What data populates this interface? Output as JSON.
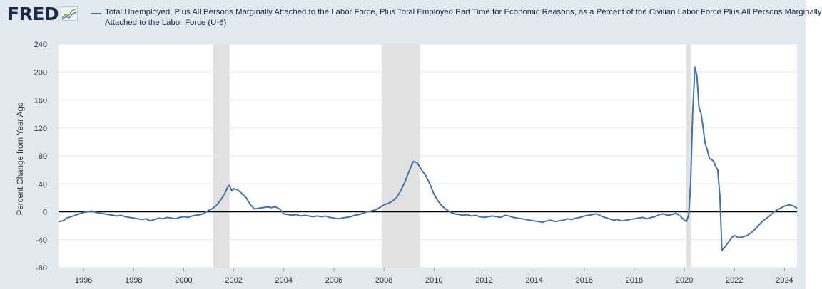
{
  "header": {
    "logo": "FRED",
    "legend_line1": "Total Unemployed, Plus All Persons Marginally Attached to the Labor Force, Plus Total Employed Part Time for Economic Reasons, as a Percent of the Civilian Labor Force Plus All Persons Marginally",
    "legend_line2": "Attached to the Labor Force (U-6)"
  },
  "colors": {
    "series": "#4572a7",
    "recession": "#e1e1e1",
    "zero_line": "#000000",
    "background": "#e1e9f0",
    "plot_bg": "#ffffff"
  },
  "chart_data": {
    "type": "line",
    "title": "",
    "xlabel": "",
    "ylabel": "Percent Change from Year Ago",
    "xlim": [
      1995.0,
      2024.5
    ],
    "ylim": [
      -80,
      240
    ],
    "yticks": [
      240,
      200,
      160,
      120,
      80,
      40,
      0,
      -40,
      -80
    ],
    "ytick_labels": [
      "240",
      "200",
      "160",
      "120",
      "80",
      "40",
      "0",
      "-40",
      "-80"
    ],
    "xticks": [
      1996,
      1998,
      2000,
      2002,
      2004,
      2006,
      2008,
      2010,
      2012,
      2014,
      2016,
      2018,
      2020,
      2022,
      2024
    ],
    "xtick_labels": [
      "1996",
      "1998",
      "2000",
      "2002",
      "2004",
      "2006",
      "2008",
      "2010",
      "2012",
      "2014",
      "2016",
      "2018",
      "2020",
      "2022",
      "2024"
    ],
    "recessions": [
      [
        2001.17,
        2001.83
      ],
      [
        2007.92,
        2009.42
      ],
      [
        2020.08,
        2020.25
      ]
    ],
    "zero_line": 0,
    "grid": "horizontal",
    "series": [
      {
        "name": "Total Unemployed, Plus All Persons Marginally Attached to the Labor Force, Plus Total Employed Part Time for Economic Reasons, as a Percent of the Civilian Labor Force Plus All Persons Marginally Attached to the Labor Force (U-6)",
        "points": [
          [
            1995.0,
            -14
          ],
          [
            1995.17,
            -13
          ],
          [
            1995.33,
            -9
          ],
          [
            1995.5,
            -7
          ],
          [
            1995.67,
            -5
          ],
          [
            1995.83,
            -3
          ],
          [
            1996.0,
            -1
          ],
          [
            1996.17,
            0
          ],
          [
            1996.33,
            1
          ],
          [
            1996.5,
            -1
          ],
          [
            1996.67,
            -2
          ],
          [
            1996.83,
            -3
          ],
          [
            1997.0,
            -4
          ],
          [
            1997.17,
            -5
          ],
          [
            1997.33,
            -6
          ],
          [
            1997.5,
            -5
          ],
          [
            1997.67,
            -7
          ],
          [
            1997.83,
            -8
          ],
          [
            1998.0,
            -9
          ],
          [
            1998.17,
            -10
          ],
          [
            1998.33,
            -11
          ],
          [
            1998.5,
            -10
          ],
          [
            1998.67,
            -13
          ],
          [
            1998.83,
            -11
          ],
          [
            1999.0,
            -9
          ],
          [
            1999.17,
            -10
          ],
          [
            1999.33,
            -8
          ],
          [
            1999.5,
            -9
          ],
          [
            1999.67,
            -10
          ],
          [
            1999.83,
            -8
          ],
          [
            2000.0,
            -7
          ],
          [
            2000.17,
            -8
          ],
          [
            2000.33,
            -6
          ],
          [
            2000.5,
            -5
          ],
          [
            2000.67,
            -4
          ],
          [
            2000.83,
            -2
          ],
          [
            2001.0,
            2
          ],
          [
            2001.17,
            5
          ],
          [
            2001.33,
            10
          ],
          [
            2001.5,
            18
          ],
          [
            2001.67,
            28
          ],
          [
            2001.75,
            35
          ],
          [
            2001.83,
            38
          ],
          [
            2001.92,
            30
          ],
          [
            2002.0,
            33
          ],
          [
            2002.17,
            31
          ],
          [
            2002.33,
            26
          ],
          [
            2002.5,
            20
          ],
          [
            2002.67,
            10
          ],
          [
            2002.83,
            4
          ],
          [
            2003.0,
            5
          ],
          [
            2003.17,
            6
          ],
          [
            2003.33,
            7
          ],
          [
            2003.5,
            6
          ],
          [
            2003.67,
            7
          ],
          [
            2003.83,
            4
          ],
          [
            2004.0,
            -3
          ],
          [
            2004.17,
            -4
          ],
          [
            2004.33,
            -5
          ],
          [
            2004.5,
            -4
          ],
          [
            2004.67,
            -6
          ],
          [
            2004.83,
            -5
          ],
          [
            2005.0,
            -6
          ],
          [
            2005.17,
            -7
          ],
          [
            2005.33,
            -6
          ],
          [
            2005.5,
            -7
          ],
          [
            2005.67,
            -6
          ],
          [
            2005.83,
            -8
          ],
          [
            2006.0,
            -9
          ],
          [
            2006.17,
            -10
          ],
          [
            2006.33,
            -9
          ],
          [
            2006.5,
            -8
          ],
          [
            2006.67,
            -7
          ],
          [
            2006.83,
            -5
          ],
          [
            2007.0,
            -4
          ],
          [
            2007.17,
            -2
          ],
          [
            2007.33,
            0
          ],
          [
            2007.5,
            1
          ],
          [
            2007.67,
            3
          ],
          [
            2007.83,
            6
          ],
          [
            2008.0,
            10
          ],
          [
            2008.17,
            12
          ],
          [
            2008.33,
            15
          ],
          [
            2008.5,
            20
          ],
          [
            2008.67,
            30
          ],
          [
            2008.83,
            42
          ],
          [
            2009.0,
            58
          ],
          [
            2009.17,
            72
          ],
          [
            2009.33,
            70
          ],
          [
            2009.5,
            60
          ],
          [
            2009.67,
            52
          ],
          [
            2009.83,
            40
          ],
          [
            2010.0,
            25
          ],
          [
            2010.17,
            15
          ],
          [
            2010.33,
            8
          ],
          [
            2010.5,
            3
          ],
          [
            2010.67,
            -1
          ],
          [
            2010.83,
            -3
          ],
          [
            2011.0,
            -4
          ],
          [
            2011.17,
            -5
          ],
          [
            2011.33,
            -4
          ],
          [
            2011.5,
            -6
          ],
          [
            2011.67,
            -5
          ],
          [
            2011.83,
            -7
          ],
          [
            2012.0,
            -8
          ],
          [
            2012.17,
            -7
          ],
          [
            2012.33,
            -6
          ],
          [
            2012.5,
            -7
          ],
          [
            2012.67,
            -8
          ],
          [
            2012.83,
            -5
          ],
          [
            2013.0,
            -6
          ],
          [
            2013.17,
            -8
          ],
          [
            2013.33,
            -9
          ],
          [
            2013.5,
            -10
          ],
          [
            2013.67,
            -11
          ],
          [
            2013.83,
            -12
          ],
          [
            2014.0,
            -13
          ],
          [
            2014.17,
            -14
          ],
          [
            2014.33,
            -15
          ],
          [
            2014.5,
            -13
          ],
          [
            2014.67,
            -12
          ],
          [
            2014.83,
            -14
          ],
          [
            2015.0,
            -13
          ],
          [
            2015.17,
            -12
          ],
          [
            2015.33,
            -10
          ],
          [
            2015.5,
            -11
          ],
          [
            2015.67,
            -9
          ],
          [
            2015.83,
            -8
          ],
          [
            2016.0,
            -6
          ],
          [
            2016.17,
            -5
          ],
          [
            2016.33,
            -4
          ],
          [
            2016.5,
            -3
          ],
          [
            2016.67,
            -6
          ],
          [
            2016.83,
            -8
          ],
          [
            2017.0,
            -10
          ],
          [
            2017.17,
            -12
          ],
          [
            2017.33,
            -11
          ],
          [
            2017.5,
            -13
          ],
          [
            2017.67,
            -12
          ],
          [
            2017.83,
            -11
          ],
          [
            2018.0,
            -10
          ],
          [
            2018.17,
            -9
          ],
          [
            2018.33,
            -8
          ],
          [
            2018.5,
            -10
          ],
          [
            2018.67,
            -8
          ],
          [
            2018.83,
            -7
          ],
          [
            2019.0,
            -4
          ],
          [
            2019.17,
            -3
          ],
          [
            2019.33,
            -5
          ],
          [
            2019.5,
            -4
          ],
          [
            2019.67,
            -2
          ],
          [
            2019.83,
            -6
          ],
          [
            2020.0,
            -12
          ],
          [
            2020.08,
            -14
          ],
          [
            2020.17,
            -5
          ],
          [
            2020.25,
            40
          ],
          [
            2020.33,
            140
          ],
          [
            2020.42,
            207
          ],
          [
            2020.5,
            195
          ],
          [
            2020.58,
            150
          ],
          [
            2020.67,
            140
          ],
          [
            2020.75,
            120
          ],
          [
            2020.83,
            98
          ],
          [
            2020.92,
            88
          ],
          [
            2021.0,
            76
          ],
          [
            2021.08,
            75
          ],
          [
            2021.17,
            72
          ],
          [
            2021.25,
            65
          ],
          [
            2021.33,
            60
          ],
          [
            2021.42,
            22
          ],
          [
            2021.5,
            -55
          ],
          [
            2021.58,
            -52
          ],
          [
            2021.67,
            -48
          ],
          [
            2021.75,
            -44
          ],
          [
            2021.83,
            -40
          ],
          [
            2021.92,
            -36
          ],
          [
            2022.0,
            -34
          ],
          [
            2022.17,
            -37
          ],
          [
            2022.33,
            -36
          ],
          [
            2022.5,
            -34
          ],
          [
            2022.67,
            -30
          ],
          [
            2022.83,
            -25
          ],
          [
            2023.0,
            -18
          ],
          [
            2023.17,
            -12
          ],
          [
            2023.33,
            -8
          ],
          [
            2023.5,
            -3
          ],
          [
            2023.67,
            2
          ],
          [
            2023.83,
            5
          ],
          [
            2024.0,
            8
          ],
          [
            2024.17,
            10
          ],
          [
            2024.33,
            9
          ],
          [
            2024.5,
            5
          ]
        ]
      }
    ]
  }
}
